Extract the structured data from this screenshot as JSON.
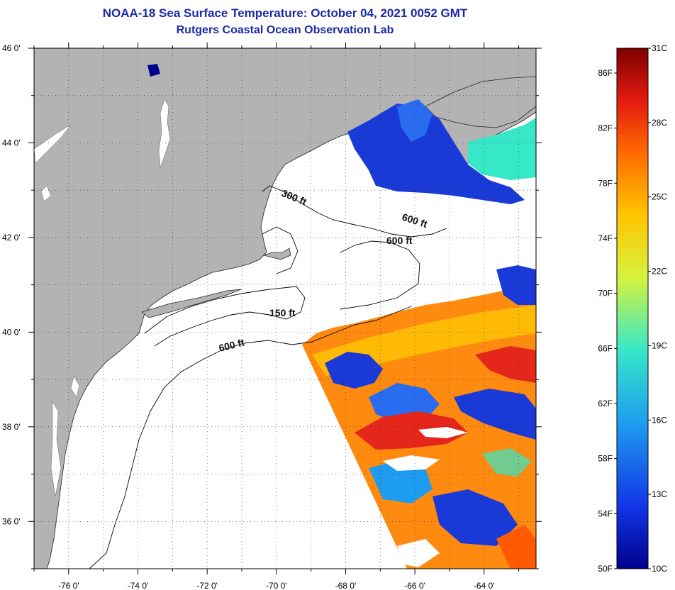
{
  "header": {
    "title": "NOAA-18 Sea Surface Temperature:  October 04, 2021 0052 GMT",
    "subtitle": "Rutgers Coastal Ocean Observation Lab"
  },
  "map": {
    "lon_range": [
      -77,
      -62.5
    ],
    "lat_range": [
      35,
      46
    ],
    "lat_ticks": [
      "46 0'",
      "44 0'",
      "42 0'",
      "40 0'",
      "38 0'",
      "36 0'"
    ],
    "lon_ticks": [
      "-76 0'",
      "-74 0'",
      "-72 0'",
      "-70 0'",
      "-68 0'",
      "-66 0'",
      "-64 0'"
    ],
    "contour_labels": [
      "300 ft",
      "600 ft",
      "600 ft",
      "150 ft",
      "600 ft"
    ],
    "land_color": "#b3b3b3",
    "no_data_color": "#ffffff"
  },
  "colorbar": {
    "fahrenheit_labels": [
      "86F",
      "82F",
      "78F",
      "74F",
      "70F",
      "66F",
      "62F",
      "58F",
      "54F",
      "50F"
    ],
    "celsius_labels": [
      "31C",
      "28C",
      "25C",
      "22C",
      "19C",
      "16C",
      "13C",
      "10C"
    ],
    "colors": [
      "#7d0000",
      "#e31a10",
      "#ff6a00",
      "#ffc400",
      "#d7f23c",
      "#36e8c8",
      "#1e9cf0",
      "#1236e6",
      "#00008c"
    ]
  }
}
